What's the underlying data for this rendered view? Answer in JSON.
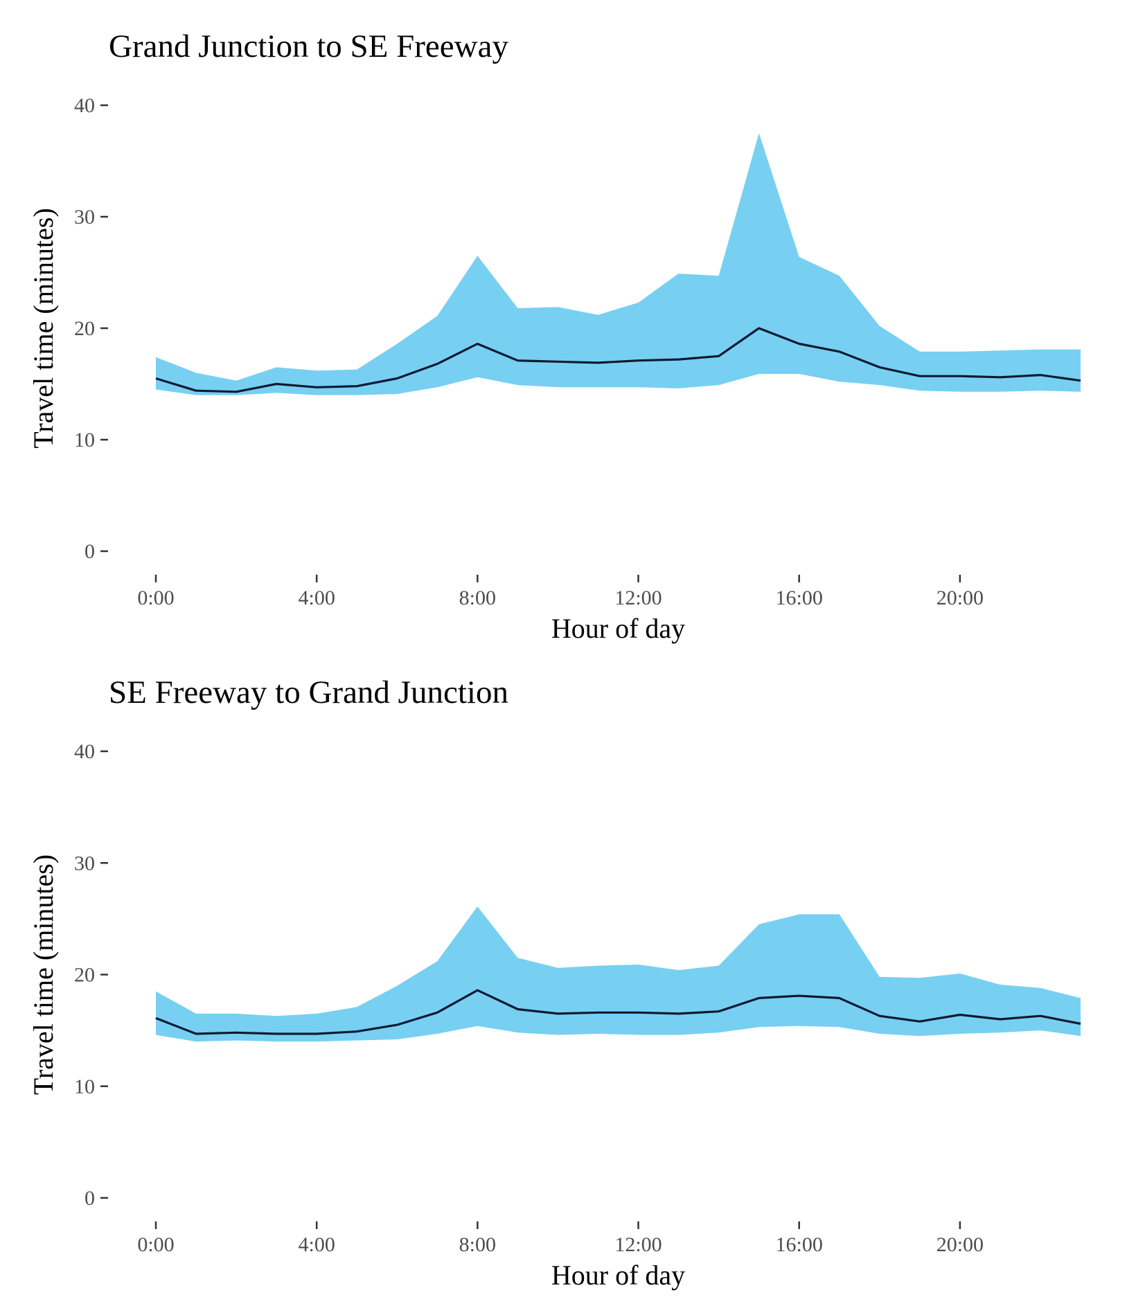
{
  "colors": {
    "band": "#77d0f2",
    "line": "#0e1a33"
  },
  "chart_data": [
    {
      "type": "area",
      "title": "Grand Junction to SE Freeway",
      "xlabel": "Hour of day",
      "ylabel": "Travel time (minutes)",
      "ylim": [
        0,
        40
      ],
      "xlim": [
        0,
        23
      ],
      "x_ticks": [
        0,
        4,
        8,
        12,
        16,
        20
      ],
      "x_tick_labels": [
        "0:00",
        "4:00",
        "8:00",
        "12:00",
        "16:00",
        "20:00"
      ],
      "y_ticks": [
        0,
        10,
        20,
        30,
        40
      ],
      "y_tick_labels": [
        "0",
        "10",
        "20",
        "30",
        "40"
      ],
      "grid": false,
      "x": [
        0,
        1,
        2,
        3,
        4,
        5,
        6,
        7,
        8,
        9,
        10,
        11,
        12,
        13,
        14,
        15,
        16,
        17,
        18,
        19,
        20,
        21,
        22,
        23
      ],
      "series": [
        {
          "role": "median",
          "values": [
            15.5,
            14.4,
            14.3,
            15.0,
            14.7,
            14.8,
            15.5,
            16.8,
            18.6,
            17.1,
            17.0,
            16.9,
            17.1,
            17.2,
            17.5,
            20.0,
            18.6,
            17.9,
            16.5,
            15.7,
            15.7,
            15.6,
            15.8,
            15.3
          ]
        },
        {
          "role": "band-upper",
          "values": [
            17.4,
            16.0,
            15.3,
            16.5,
            16.2,
            16.3,
            18.6,
            21.1,
            26.5,
            21.8,
            21.9,
            21.2,
            22.3,
            24.9,
            24.7,
            37.5,
            26.4,
            24.7,
            20.2,
            17.9,
            17.9,
            18.0,
            18.1,
            18.1
          ]
        },
        {
          "role": "band-lower",
          "values": [
            14.5,
            14.0,
            14.0,
            14.2,
            14.0,
            14.0,
            14.1,
            14.7,
            15.6,
            14.9,
            14.7,
            14.7,
            14.7,
            14.6,
            14.9,
            15.9,
            15.9,
            15.2,
            14.9,
            14.4,
            14.3,
            14.3,
            14.4,
            14.3
          ]
        }
      ]
    },
    {
      "type": "area",
      "title": "SE Freeway to Grand Junction",
      "xlabel": "Hour of day",
      "ylabel": "Travel time (minutes)",
      "ylim": [
        0,
        40
      ],
      "xlim": [
        0,
        23
      ],
      "x_ticks": [
        0,
        4,
        8,
        12,
        16,
        20
      ],
      "x_tick_labels": [
        "0:00",
        "4:00",
        "8:00",
        "12:00",
        "16:00",
        "20:00"
      ],
      "y_ticks": [
        0,
        10,
        20,
        30,
        40
      ],
      "y_tick_labels": [
        "0",
        "10",
        "20",
        "30",
        "40"
      ],
      "grid": false,
      "x": [
        0,
        1,
        2,
        3,
        4,
        5,
        6,
        7,
        8,
        9,
        10,
        11,
        12,
        13,
        14,
        15,
        16,
        17,
        18,
        19,
        20,
        21,
        22,
        23
      ],
      "series": [
        {
          "role": "median",
          "values": [
            16.1,
            14.7,
            14.8,
            14.7,
            14.7,
            14.9,
            15.5,
            16.6,
            18.6,
            16.9,
            16.5,
            16.6,
            16.6,
            16.5,
            16.7,
            17.9,
            18.1,
            17.9,
            16.3,
            15.8,
            16.4,
            16.0,
            16.3,
            15.6
          ]
        },
        {
          "role": "band-upper",
          "values": [
            18.5,
            16.5,
            16.5,
            16.3,
            16.5,
            17.1,
            19.0,
            21.2,
            26.1,
            21.5,
            20.6,
            20.8,
            20.9,
            20.4,
            20.8,
            24.5,
            25.4,
            25.4,
            19.8,
            19.7,
            20.1,
            19.1,
            18.8,
            17.9
          ]
        },
        {
          "role": "band-lower",
          "values": [
            14.6,
            14.0,
            14.1,
            14.0,
            14.0,
            14.1,
            14.2,
            14.7,
            15.4,
            14.8,
            14.6,
            14.7,
            14.6,
            14.6,
            14.8,
            15.3,
            15.4,
            15.3,
            14.7,
            14.5,
            14.7,
            14.8,
            15.0,
            14.5
          ]
        }
      ]
    }
  ]
}
